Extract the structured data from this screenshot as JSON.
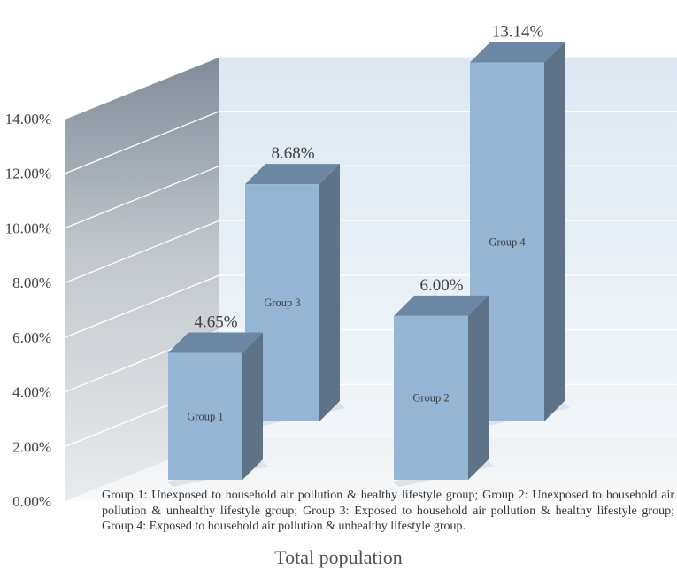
{
  "chart_data": {
    "type": "bar",
    "style": "3d-column",
    "categories": [
      "Group 1",
      "Group 2",
      "Group 3",
      "Group 4"
    ],
    "values": [
      4.65,
      6.0,
      8.68,
      13.14
    ],
    "value_labels": [
      "4.65%",
      "6.00%",
      "8.68%",
      "13.14%"
    ],
    "row": [
      "front",
      "front",
      "back",
      "back"
    ],
    "ylim": [
      0,
      14
    ],
    "y_ticks": [
      "0.00%",
      "2.00%",
      "4.00%",
      "6.00%",
      "8.00%",
      "10.00%",
      "12.00%",
      "14.00%"
    ],
    "xlabel": "Total population",
    "ylabel": "",
    "title": "",
    "grid": true,
    "colors": {
      "bar_front": "#95b5d4",
      "bar_top": "#6c87a4",
      "bar_side": "#5e7387",
      "gridline": "#ffffff",
      "back_wall": "#dde8f1"
    }
  },
  "caption": "Group 1: Unexposed to household air pollution & healthy lifestyle group; Group 2: Unexposed to household air pollution & unhealthy lifestyle group; Group 3: Exposed to household air pollution & healthy lifestyle group; Group 4: Exposed to household air pollution & unhealthy lifestyle group."
}
